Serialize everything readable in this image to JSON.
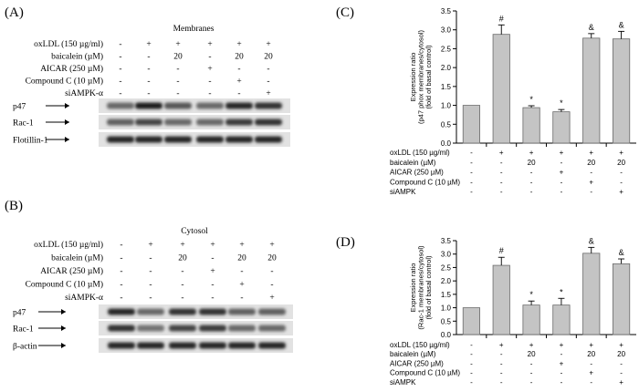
{
  "panels": {
    "A": {
      "label": "(A)",
      "title": "Membranes",
      "conditions": [
        {
          "label": "oxLDL (150 µg/ml)",
          "values": [
            "-",
            "+",
            "+",
            "+",
            "+",
            "+"
          ]
        },
        {
          "label": "baicalein (µM)",
          "values": [
            "-",
            "-",
            "20",
            "-",
            "20",
            "20"
          ]
        },
        {
          "label": "AICAR (250 µM)",
          "values": [
            "-",
            "-",
            "-",
            "+",
            "-",
            "-"
          ]
        },
        {
          "label": "Compound C (10 µM)",
          "values": [
            "-",
            "-",
            "-",
            "-",
            "+",
            "-"
          ]
        },
        {
          "label": "siAMPK-α",
          "values": [
            "-",
            "-",
            "-",
            "-",
            "-",
            "+"
          ]
        }
      ],
      "blots": [
        {
          "label": "p47",
          "intensity": [
            0.55,
            0.95,
            0.65,
            0.55,
            0.9,
            0.85
          ]
        },
        {
          "label": "Rac-1",
          "intensity": [
            0.6,
            0.75,
            0.55,
            0.55,
            0.8,
            0.85
          ]
        },
        {
          "label": "Flotillin-1",
          "intensity": [
            0.9,
            0.9,
            0.9,
            0.9,
            0.9,
            0.9
          ]
        }
      ]
    },
    "B": {
      "label": "(B)",
      "title": "Cytosol",
      "conditions": [
        {
          "label": "oxLDL (150 µg/ml)",
          "values": [
            "-",
            "+",
            "+",
            "+",
            "+",
            "+"
          ]
        },
        {
          "label": "baicalein (µM)",
          "values": [
            "-",
            "-",
            "20",
            "-",
            "20",
            "20"
          ]
        },
        {
          "label": "AICAR (250 µM)",
          "values": [
            "-",
            "-",
            "-",
            "+",
            "-",
            "-"
          ]
        },
        {
          "label": "Compound C (10 µM)",
          "values": [
            "-",
            "-",
            "-",
            "-",
            "+",
            "-"
          ]
        },
        {
          "label": "siAMPK-α",
          "values": [
            "-",
            "-",
            "-",
            "-",
            "-",
            "+"
          ]
        }
      ],
      "blots": [
        {
          "label": "p47",
          "intensity": [
            0.9,
            0.55,
            0.85,
            0.85,
            0.6,
            0.6
          ]
        },
        {
          "label": "Rac-1",
          "intensity": [
            0.85,
            0.5,
            0.75,
            0.8,
            0.55,
            0.55
          ]
        },
        {
          "label": "β-actin",
          "intensity": [
            0.9,
            0.9,
            0.9,
            0.9,
            0.9,
            0.9
          ]
        }
      ]
    },
    "C": {
      "label": "(C)",
      "conditions": [
        {
          "label": "oxLDL (150 µg/ml)",
          "values": [
            "-",
            "+",
            "+",
            "+",
            "+",
            "+"
          ]
        },
        {
          "label": "baicalein (µM)",
          "values": [
            "-",
            "-",
            "20",
            "-",
            "20",
            "20"
          ]
        },
        {
          "label": "AICAR (250 µM)",
          "values": [
            "-",
            "-",
            "-",
            "+",
            "-",
            "-"
          ]
        },
        {
          "label": "Compound C (10 µM)",
          "values": [
            "-",
            "-",
            "-",
            "-",
            "+",
            "-"
          ]
        },
        {
          "label": "siAMPK",
          "values": [
            "-",
            "-",
            "-",
            "-",
            "-",
            "+"
          ]
        }
      ]
    },
    "D": {
      "label": "(D)",
      "conditions": [
        {
          "label": "oxLDL (150 µg/ml)",
          "values": [
            "-",
            "+",
            "+",
            "+",
            "+",
            "+"
          ]
        },
        {
          "label": "baicalein (µM)",
          "values": [
            "-",
            "-",
            "20",
            "-",
            "20",
            "20"
          ]
        },
        {
          "label": "AICAR (250 µM)",
          "values": [
            "-",
            "-",
            "-",
            "+",
            "-",
            "-"
          ]
        },
        {
          "label": "Compound C (10 µM)",
          "values": [
            "-",
            "-",
            "-",
            "-",
            "+",
            "-"
          ]
        },
        {
          "label": "siAMPK",
          "values": [
            "-",
            "-",
            "-",
            "-",
            "-",
            "+"
          ]
        }
      ]
    }
  },
  "chart_data": [
    {
      "type": "bar",
      "panel": "C",
      "ylabel_lines": [
        "Expression ratio",
        "(p47 phox membranes/cytosol)",
        "(fold of basal control)"
      ],
      "ylim": [
        0,
        3.5
      ],
      "yticks": [
        "0.0",
        "0.5",
        "1.0",
        "1.5",
        "2.0",
        "2.5",
        "3.0",
        "3.5"
      ],
      "values": [
        1.0,
        2.88,
        0.94,
        0.83,
        2.78,
        2.76
      ],
      "errors": [
        0.0,
        0.25,
        0.05,
        0.06,
        0.12,
        0.2
      ],
      "annotations": [
        "",
        "#",
        "*",
        "*",
        "&",
        "&"
      ],
      "bar_color": "#c4c4c4"
    },
    {
      "type": "bar",
      "panel": "D",
      "ylabel_lines": [
        "Expression ratio",
        "(Rac-1 membranes/cytosol)",
        "(fold of basal control)"
      ],
      "ylim": [
        0,
        3.5
      ],
      "yticks": [
        "0.0",
        "0.5",
        "1.0",
        "1.5",
        "2.0",
        "2.5",
        "3.0",
        "3.5"
      ],
      "values": [
        1.0,
        2.58,
        1.1,
        1.1,
        3.03,
        2.64
      ],
      "errors": [
        0.0,
        0.3,
        0.15,
        0.25,
        0.22,
        0.18
      ],
      "annotations": [
        "",
        "#",
        "*",
        "*",
        "&",
        "&"
      ],
      "bar_color": "#c4c4c4"
    }
  ]
}
